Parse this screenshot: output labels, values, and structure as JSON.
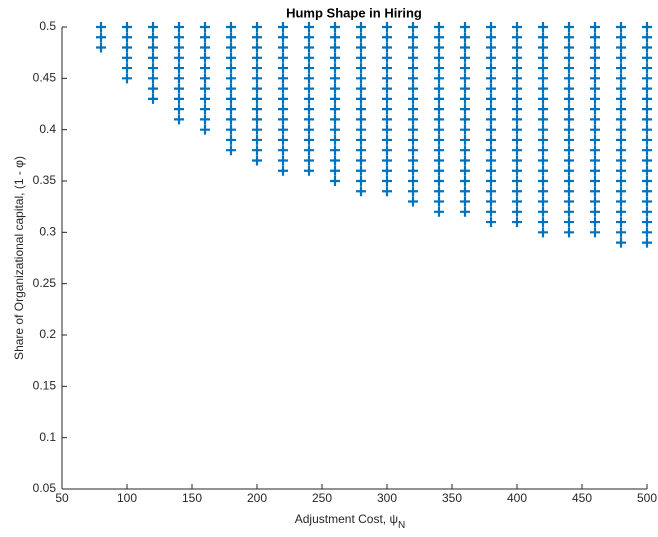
{
  "chart_data": {
    "type": "scatter",
    "title": "Hump Shape in Hiring",
    "xlabel": "Adjustment Cost,  ψ",
    "xlabel_subscript": "N",
    "ylabel": "Share of Organizational capital, (1 - φ)",
    "marker": "+",
    "color": "#0072bd",
    "xlim": [
      50,
      500
    ],
    "xticks": [
      50,
      100,
      150,
      200,
      250,
      300,
      350,
      400,
      450,
      500
    ],
    "ylim": [
      0.05,
      0.5
    ],
    "yticks": [
      0.05,
      0.1,
      0.15,
      0.2,
      0.25,
      0.3,
      0.35,
      0.4,
      0.45,
      0.5
    ],
    "columns": [
      {
        "x": 80,
        "y": [
          0.5,
          0.49,
          0.48
        ]
      },
      {
        "x": 100,
        "y": [
          0.5,
          0.49,
          0.48,
          0.47,
          0.46,
          0.45
        ]
      },
      {
        "x": 120,
        "y": [
          0.5,
          0.49,
          0.48,
          0.47,
          0.46,
          0.45,
          0.44,
          0.43
        ]
      },
      {
        "x": 140,
        "y": [
          0.5,
          0.49,
          0.48,
          0.47,
          0.46,
          0.45,
          0.44,
          0.43,
          0.42,
          0.41
        ]
      },
      {
        "x": 160,
        "y": [
          0.5,
          0.49,
          0.48,
          0.47,
          0.46,
          0.45,
          0.44,
          0.43,
          0.42,
          0.41,
          0.4
        ]
      },
      {
        "x": 180,
        "y": [
          0.5,
          0.49,
          0.48,
          0.47,
          0.46,
          0.45,
          0.44,
          0.43,
          0.42,
          0.41,
          0.4,
          0.39,
          0.38
        ]
      },
      {
        "x": 200,
        "y": [
          0.5,
          0.49,
          0.48,
          0.47,
          0.46,
          0.45,
          0.44,
          0.43,
          0.42,
          0.41,
          0.4,
          0.39,
          0.38,
          0.37
        ]
      },
      {
        "x": 220,
        "y": [
          0.5,
          0.49,
          0.48,
          0.47,
          0.46,
          0.45,
          0.44,
          0.43,
          0.42,
          0.41,
          0.4,
          0.39,
          0.38,
          0.37,
          0.36
        ]
      },
      {
        "x": 240,
        "y": [
          0.5,
          0.49,
          0.48,
          0.47,
          0.46,
          0.45,
          0.44,
          0.43,
          0.42,
          0.41,
          0.4,
          0.39,
          0.38,
          0.37,
          0.36
        ]
      },
      {
        "x": 260,
        "y": [
          0.5,
          0.49,
          0.48,
          0.47,
          0.46,
          0.45,
          0.44,
          0.43,
          0.42,
          0.41,
          0.4,
          0.39,
          0.38,
          0.37,
          0.36,
          0.35
        ]
      },
      {
        "x": 280,
        "y": [
          0.5,
          0.49,
          0.48,
          0.47,
          0.46,
          0.45,
          0.44,
          0.43,
          0.42,
          0.41,
          0.4,
          0.39,
          0.38,
          0.37,
          0.36,
          0.35,
          0.34
        ]
      },
      {
        "x": 300,
        "y": [
          0.5,
          0.49,
          0.48,
          0.47,
          0.46,
          0.45,
          0.44,
          0.43,
          0.42,
          0.41,
          0.4,
          0.39,
          0.38,
          0.37,
          0.36,
          0.35,
          0.34
        ]
      },
      {
        "x": 320,
        "y": [
          0.5,
          0.49,
          0.48,
          0.47,
          0.46,
          0.45,
          0.44,
          0.43,
          0.42,
          0.41,
          0.4,
          0.39,
          0.38,
          0.37,
          0.36,
          0.35,
          0.34,
          0.33
        ]
      },
      {
        "x": 340,
        "y": [
          0.5,
          0.49,
          0.48,
          0.47,
          0.46,
          0.45,
          0.44,
          0.43,
          0.42,
          0.41,
          0.4,
          0.39,
          0.38,
          0.37,
          0.36,
          0.35,
          0.34,
          0.33,
          0.32
        ]
      },
      {
        "x": 360,
        "y": [
          0.5,
          0.49,
          0.48,
          0.47,
          0.46,
          0.45,
          0.44,
          0.43,
          0.42,
          0.41,
          0.4,
          0.39,
          0.38,
          0.37,
          0.36,
          0.35,
          0.34,
          0.33,
          0.32
        ]
      },
      {
        "x": 380,
        "y": [
          0.5,
          0.49,
          0.48,
          0.47,
          0.46,
          0.45,
          0.44,
          0.43,
          0.42,
          0.41,
          0.4,
          0.39,
          0.38,
          0.37,
          0.36,
          0.35,
          0.34,
          0.33,
          0.32,
          0.31
        ]
      },
      {
        "x": 400,
        "y": [
          0.5,
          0.49,
          0.48,
          0.47,
          0.46,
          0.45,
          0.44,
          0.43,
          0.42,
          0.41,
          0.4,
          0.39,
          0.38,
          0.37,
          0.36,
          0.35,
          0.34,
          0.33,
          0.32,
          0.31
        ]
      },
      {
        "x": 420,
        "y": [
          0.5,
          0.49,
          0.48,
          0.47,
          0.46,
          0.45,
          0.44,
          0.43,
          0.42,
          0.41,
          0.4,
          0.39,
          0.38,
          0.37,
          0.36,
          0.35,
          0.34,
          0.33,
          0.32,
          0.31,
          0.3
        ]
      },
      {
        "x": 440,
        "y": [
          0.5,
          0.49,
          0.48,
          0.47,
          0.46,
          0.45,
          0.44,
          0.43,
          0.42,
          0.41,
          0.4,
          0.39,
          0.38,
          0.37,
          0.36,
          0.35,
          0.34,
          0.33,
          0.32,
          0.31,
          0.3
        ]
      },
      {
        "x": 460,
        "y": [
          0.5,
          0.49,
          0.48,
          0.47,
          0.46,
          0.45,
          0.44,
          0.43,
          0.42,
          0.41,
          0.4,
          0.39,
          0.38,
          0.37,
          0.36,
          0.35,
          0.34,
          0.33,
          0.32,
          0.31,
          0.3
        ]
      },
      {
        "x": 480,
        "y": [
          0.5,
          0.49,
          0.48,
          0.47,
          0.46,
          0.45,
          0.44,
          0.43,
          0.42,
          0.41,
          0.4,
          0.39,
          0.38,
          0.37,
          0.36,
          0.35,
          0.34,
          0.33,
          0.32,
          0.31,
          0.3,
          0.29
        ]
      },
      {
        "x": 500,
        "y": [
          0.5,
          0.49,
          0.48,
          0.47,
          0.46,
          0.45,
          0.44,
          0.43,
          0.42,
          0.41,
          0.4,
          0.39,
          0.38,
          0.37,
          0.36,
          0.35,
          0.34,
          0.33,
          0.32,
          0.31,
          0.3,
          0.29
        ]
      }
    ]
  }
}
